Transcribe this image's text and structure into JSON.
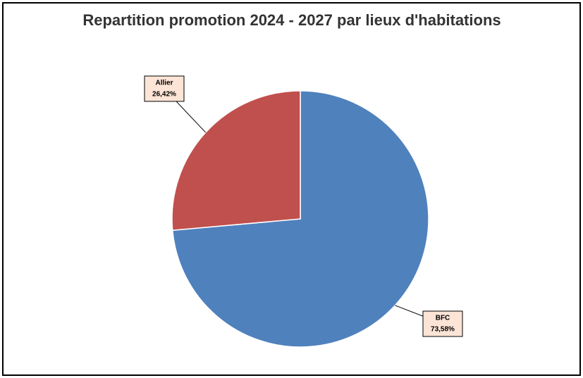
{
  "chart_data": {
    "type": "pie",
    "title": "Repartition promotion 2024 - 2027 par lieux d'habitations",
    "categories": [
      "BFC",
      "Allier"
    ],
    "values": [
      73.58,
      26.42
    ],
    "value_labels": [
      "73,58%",
      "26,42%"
    ],
    "colors": [
      "#4f81bd",
      "#c0504d"
    ]
  }
}
